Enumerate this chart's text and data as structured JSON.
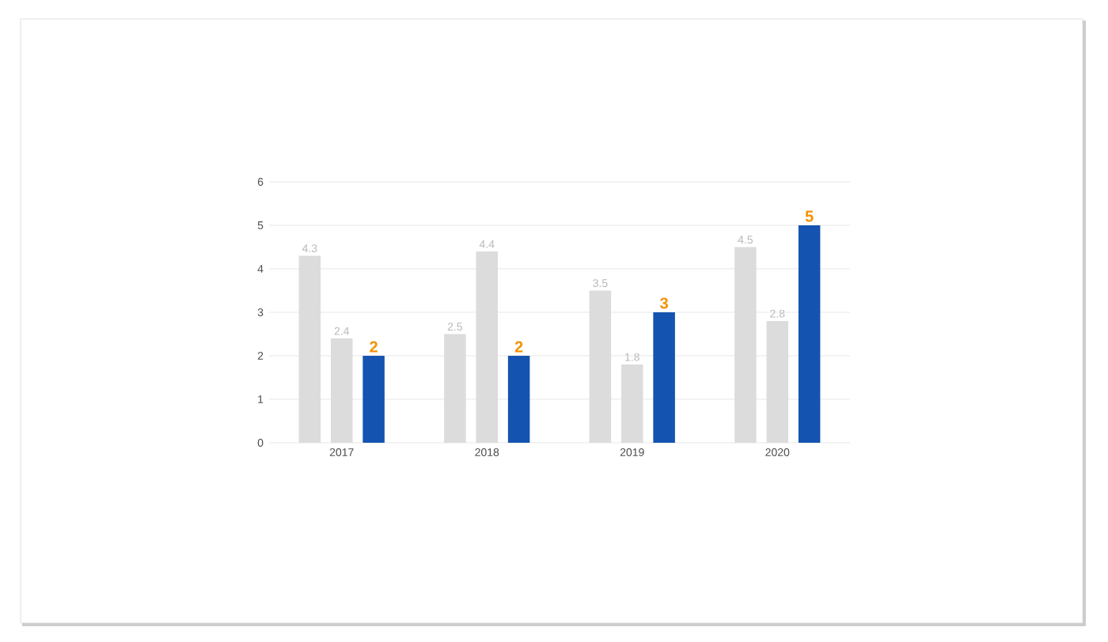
{
  "chart_data": {
    "type": "bar",
    "categories": [
      "2017",
      "2018",
      "2019",
      "2020"
    ],
    "series": [
      {
        "color": "#dcdcdc",
        "values": [
          4.3,
          2.5,
          3.5,
          4.5
        ]
      },
      {
        "color": "#dcdcdc",
        "values": [
          2.4,
          4.4,
          1.8,
          2.8
        ]
      },
      {
        "color": "#1553b0",
        "values": [
          2,
          2,
          3,
          5
        ]
      }
    ],
    "ylim": [
      0,
      6
    ],
    "yticks": [
      0,
      1,
      2,
      3,
      4,
      5,
      6
    ],
    "grid": "y",
    "data_labels": true
  }
}
